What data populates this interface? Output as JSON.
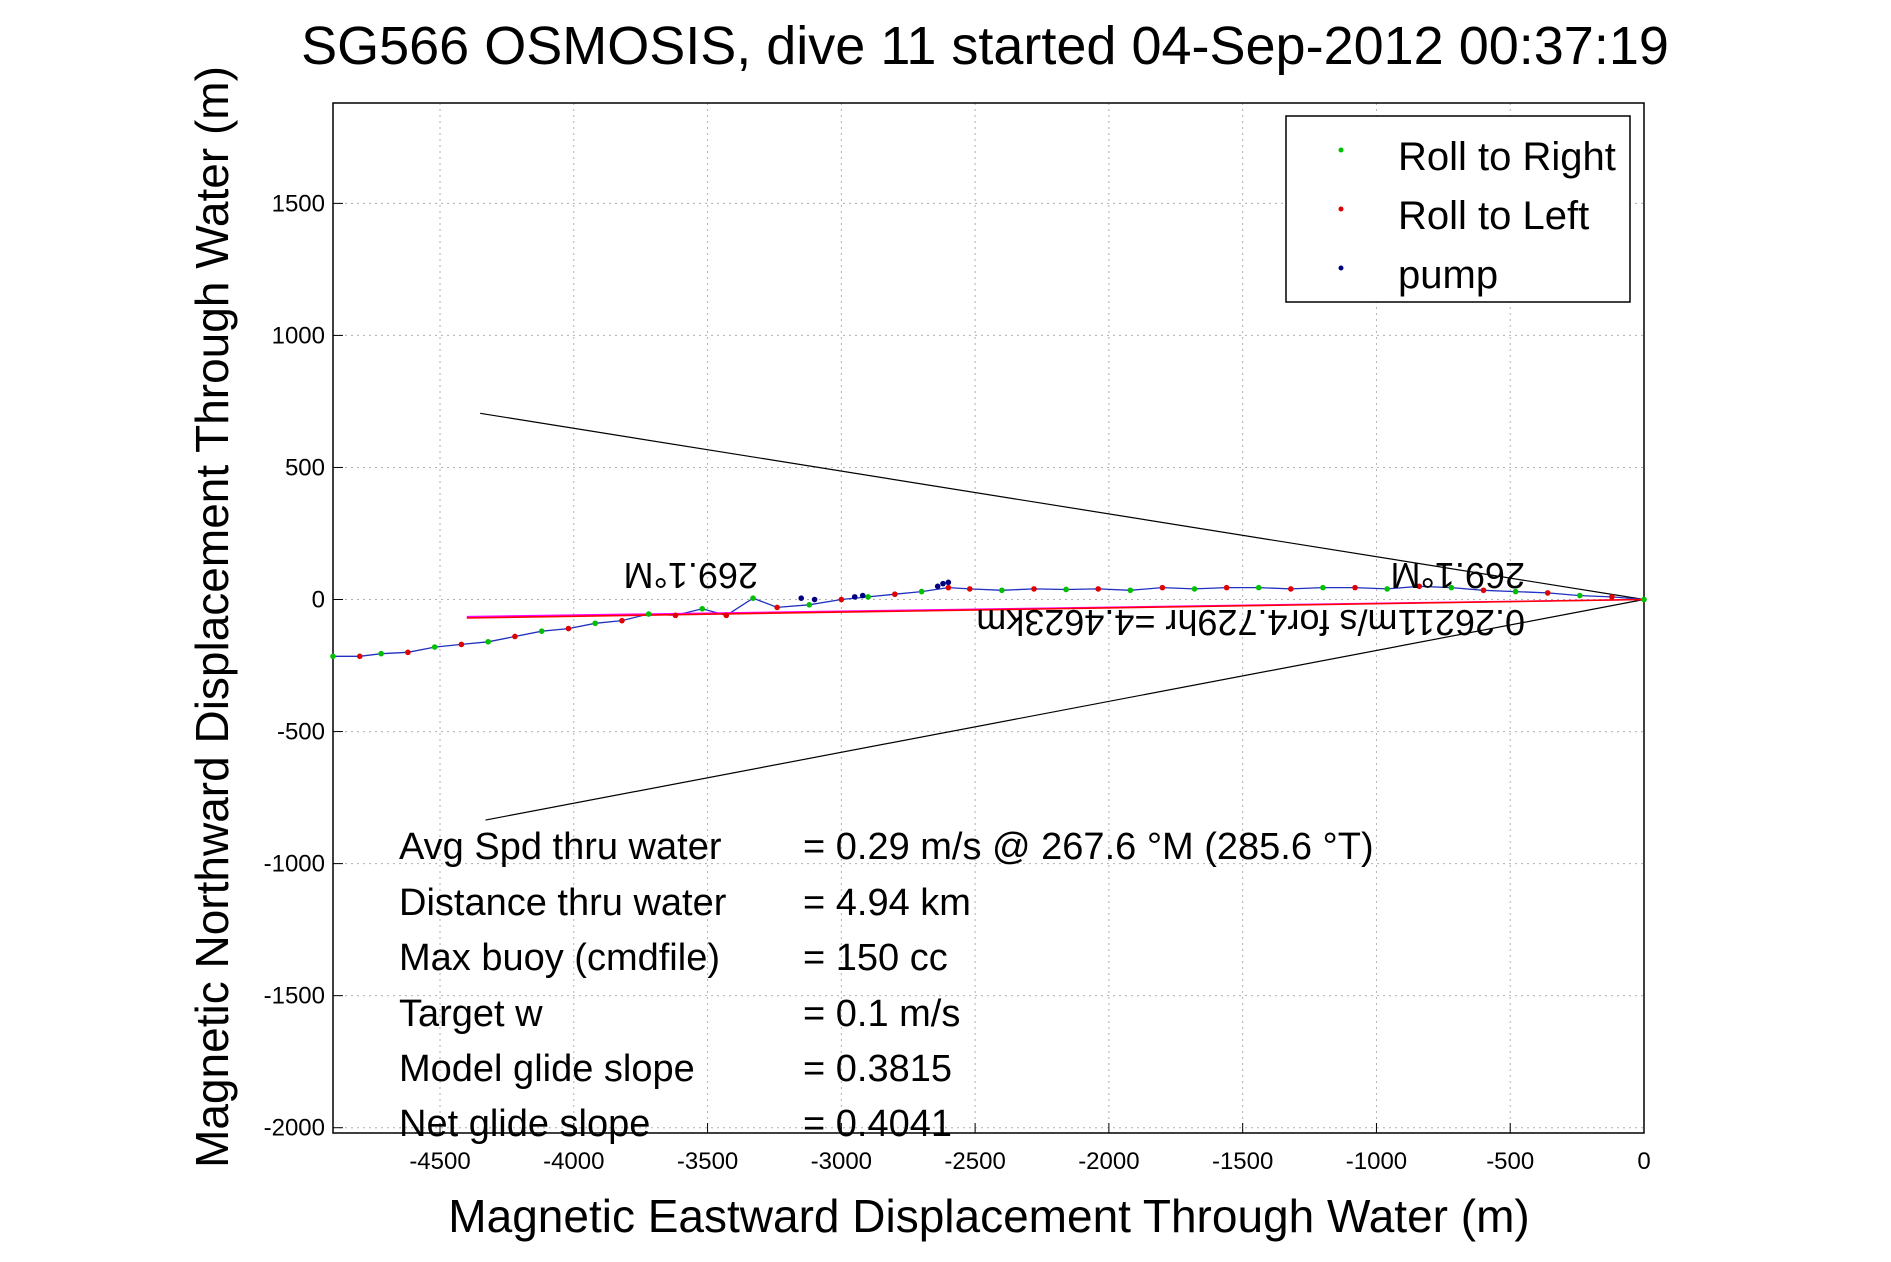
{
  "chart_data": {
    "type": "line",
    "title": "SG566 OSMOSIS, dive 11 started 04-Sep-2012 00:37:19",
    "xlabel": "Magnetic Eastward Displacement Through Water (m)",
    "ylabel": "Magnetic Northward Displacement Through Water (m)",
    "xlim": [
      -4900,
      0
    ],
    "ylim": [
      -2020,
      1880
    ],
    "xticks": [
      -4500,
      -4000,
      -3500,
      -3000,
      -2500,
      -2000,
      -1500,
      -1000,
      -500,
      0
    ],
    "yticks": [
      -2000,
      -1500,
      -1000,
      -500,
      0,
      500,
      1000,
      1500
    ],
    "grid": true,
    "legend_position": "top-right",
    "legend": [
      {
        "label": "Roll to Right",
        "color": "#00c000"
      },
      {
        "label": "Roll to Left",
        "color": "#e00000"
      },
      {
        "label": "pump",
        "color": "#000080"
      }
    ],
    "series": [
      {
        "line_color": "#2030c0",
        "x": [
          0,
          -120,
          -240,
          -360,
          -480,
          -600,
          -720,
          -840,
          -960,
          -1080,
          -1200,
          -1320,
          -1440,
          -1560,
          -1680,
          -1800,
          -1920,
          -2040,
          -2160,
          -2280,
          -2400,
          -2520,
          -2600,
          -2700,
          -2800,
          -2900,
          -3000,
          -3120,
          -3240,
          -3330,
          -3430,
          -3520,
          -3620,
          -3720,
          -3820,
          -3920,
          -4020,
          -4120,
          -4220,
          -4320,
          -4420,
          -4520,
          -4620,
          -4720,
          -4800,
          -4900
        ],
        "y": [
          0,
          10,
          15,
          25,
          30,
          35,
          45,
          50,
          40,
          45,
          45,
          40,
          45,
          45,
          40,
          45,
          35,
          40,
          38,
          40,
          35,
          40,
          45,
          30,
          20,
          10,
          0,
          -20,
          -30,
          5,
          -60,
          -35,
          -60,
          -55,
          -80,
          -90,
          -110,
          -120,
          -140,
          -160,
          -170,
          -180,
          -200,
          -205,
          -215,
          -215
        ],
        "roll_markers": [
          "right",
          "left",
          "right",
          "left",
          "right",
          "left",
          "right",
          "left",
          "right",
          "left",
          "right",
          "left",
          "right",
          "left",
          "right",
          "left",
          "right",
          "left",
          "right",
          "left",
          "right",
          "left",
          "left",
          "right",
          "left",
          "right",
          "left",
          "right",
          "left",
          "right",
          "left",
          "right",
          "left",
          "right",
          "left",
          "right",
          "left",
          "right",
          "left",
          "right",
          "left",
          "right",
          "left",
          "right",
          "left",
          "right"
        ]
      },
      {
        "line_color": "#ff00ff",
        "x": [
          0,
          -4400
        ],
        "y": [
          0,
          -65
        ]
      },
      {
        "line_color": "#ff0000",
        "x": [
          0,
          -4400
        ],
        "y": [
          0,
          -70
        ]
      }
    ],
    "pump_points": {
      "x": [
        -2600,
        -2620,
        -2640,
        -2920,
        -2950,
        -3100,
        -3150
      ],
      "y": [
        65,
        60,
        50,
        15,
        10,
        0,
        5
      ]
    },
    "wedge_lines": [
      {
        "x": [
          0,
          -4350
        ],
        "y": [
          0,
          705
        ]
      },
      {
        "x": [
          0,
          -4330
        ],
        "y": [
          0,
          -835
        ]
      }
    ],
    "annotations": {
      "heading_right": "269.1°M",
      "heading_left": "269.1°M",
      "current": "0.26211m/s for4.729hr =4.4623km"
    },
    "stats": [
      {
        "label": "Avg Spd thru water",
        "value": "=  0.29 m/s @ 267.6 °M (285.6 °T)"
      },
      {
        "label": "Distance thru water",
        "value": "=  4.94 km"
      },
      {
        "label": "Max buoy (cmdfile)",
        "value": "= 150 cc"
      },
      {
        "label": "Target w",
        "value": "= 0.1 m/s"
      },
      {
        "label": "Model glide slope",
        "value": "= 0.3815"
      },
      {
        "label": "Net glide slope",
        "value": "= 0.4041"
      }
    ]
  }
}
